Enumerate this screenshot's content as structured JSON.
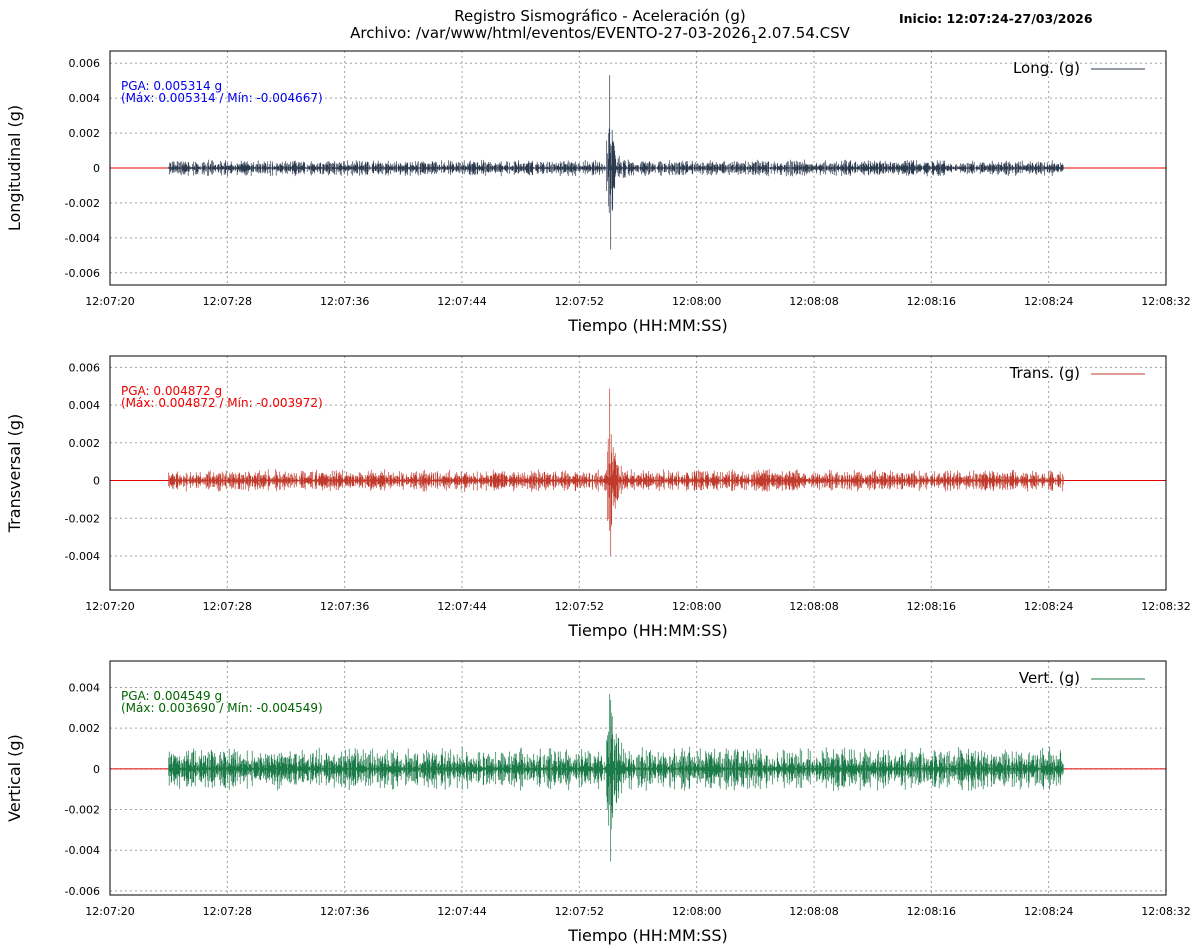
{
  "header": {
    "title": "Registro Sismográfico - Aceleración (g)",
    "file_prefix": "Archivo: /var/www/html/eventos/EVENTO-27-03-2026",
    "file_subscript": "1",
    "file_suffix": "2.07.54.CSV",
    "start_label": "Inicio: 12:07:24-27/03/2026"
  },
  "colors": {
    "zero_line": "#e00000",
    "grid": "#a0a0a0"
  },
  "chart_data": [
    {
      "type": "line",
      "series": [
        {
          "name": "Long. (g)",
          "color": "#2b3a4e"
        }
      ],
      "ylabel": "Longitudinal (g)",
      "xlabel": "Tiempo (HH:MM:SS)",
      "x_ticks": [
        "12:07:20",
        "12:07:28",
        "12:07:36",
        "12:07:44",
        "12:07:52",
        "12:08:00",
        "12:08:08",
        "12:08:16",
        "12:08:24",
        "12:08:32"
      ],
      "xlim": [
        "12:07:20",
        "12:08:32"
      ],
      "y_ticks": [
        "0.006",
        "0.004",
        "0.002",
        "0",
        "-0.002",
        "-0.004",
        "-0.006"
      ],
      "ylim": [
        -0.0067,
        0.0067
      ],
      "signal": {
        "start": "12:07:24",
        "end": "12:08:25",
        "event": "12:07:54",
        "noise": 0.0004,
        "max": 0.005314,
        "min": -0.004667
      },
      "pga_text": "PGA: 0.005314 g",
      "range_text": "(Máx: 0.005314 / Mín: -0.004667)",
      "annotation_color": "#0000ee",
      "legend": "top-right",
      "grid": true
    },
    {
      "type": "line",
      "series": [
        {
          "name": "Trans. (g)",
          "color": "#c0392b"
        }
      ],
      "ylabel": "Transversal (g)",
      "xlabel": "Tiempo (HH:MM:SS)",
      "x_ticks": [
        "12:07:20",
        "12:07:28",
        "12:07:36",
        "12:07:44",
        "12:07:52",
        "12:08:00",
        "12:08:08",
        "12:08:16",
        "12:08:24",
        "12:08:32"
      ],
      "xlim": [
        "12:07:20",
        "12:08:32"
      ],
      "y_ticks": [
        "0.006",
        "0.004",
        "0.002",
        "0",
        "-0.002",
        "-0.004"
      ],
      "ylim": [
        -0.0058,
        0.0066
      ],
      "signal": {
        "start": "12:07:24",
        "end": "12:08:25",
        "event": "12:07:54",
        "noise": 0.0005,
        "max": 0.004872,
        "min": -0.003972
      },
      "pga_text": "PGA: 0.004872 g",
      "range_text": "(Máx: 0.004872 / Mín: -0.003972)",
      "annotation_color": "#ee0000",
      "legend": "top-right",
      "grid": true
    },
    {
      "type": "line",
      "series": [
        {
          "name": "Vert. (g)",
          "color": "#1a7a48"
        }
      ],
      "ylabel": "Vertical (g)",
      "xlabel": "Tiempo (HH:MM:SS)",
      "x_ticks": [
        "12:07:20",
        "12:07:28",
        "12:07:36",
        "12:07:44",
        "12:07:52",
        "12:08:00",
        "12:08:08",
        "12:08:16",
        "12:08:24",
        "12:08:32"
      ],
      "xlim": [
        "12:07:20",
        "12:08:32"
      ],
      "y_ticks": [
        "0.004",
        "0.002",
        "0",
        "-0.002",
        "-0.004",
        "-0.006"
      ],
      "ylim": [
        -0.0062,
        0.0053
      ],
      "signal": {
        "start": "12:07:24",
        "end": "12:08:25",
        "event": "12:07:54",
        "noise": 0.0009,
        "max": 0.00369,
        "min": -0.004549
      },
      "pga_text": "PGA: 0.004549 g",
      "range_text": "(Máx: 0.003690 / Mín: -0.004549)",
      "annotation_color": "#006400",
      "legend": "top-right",
      "grid": true
    }
  ]
}
